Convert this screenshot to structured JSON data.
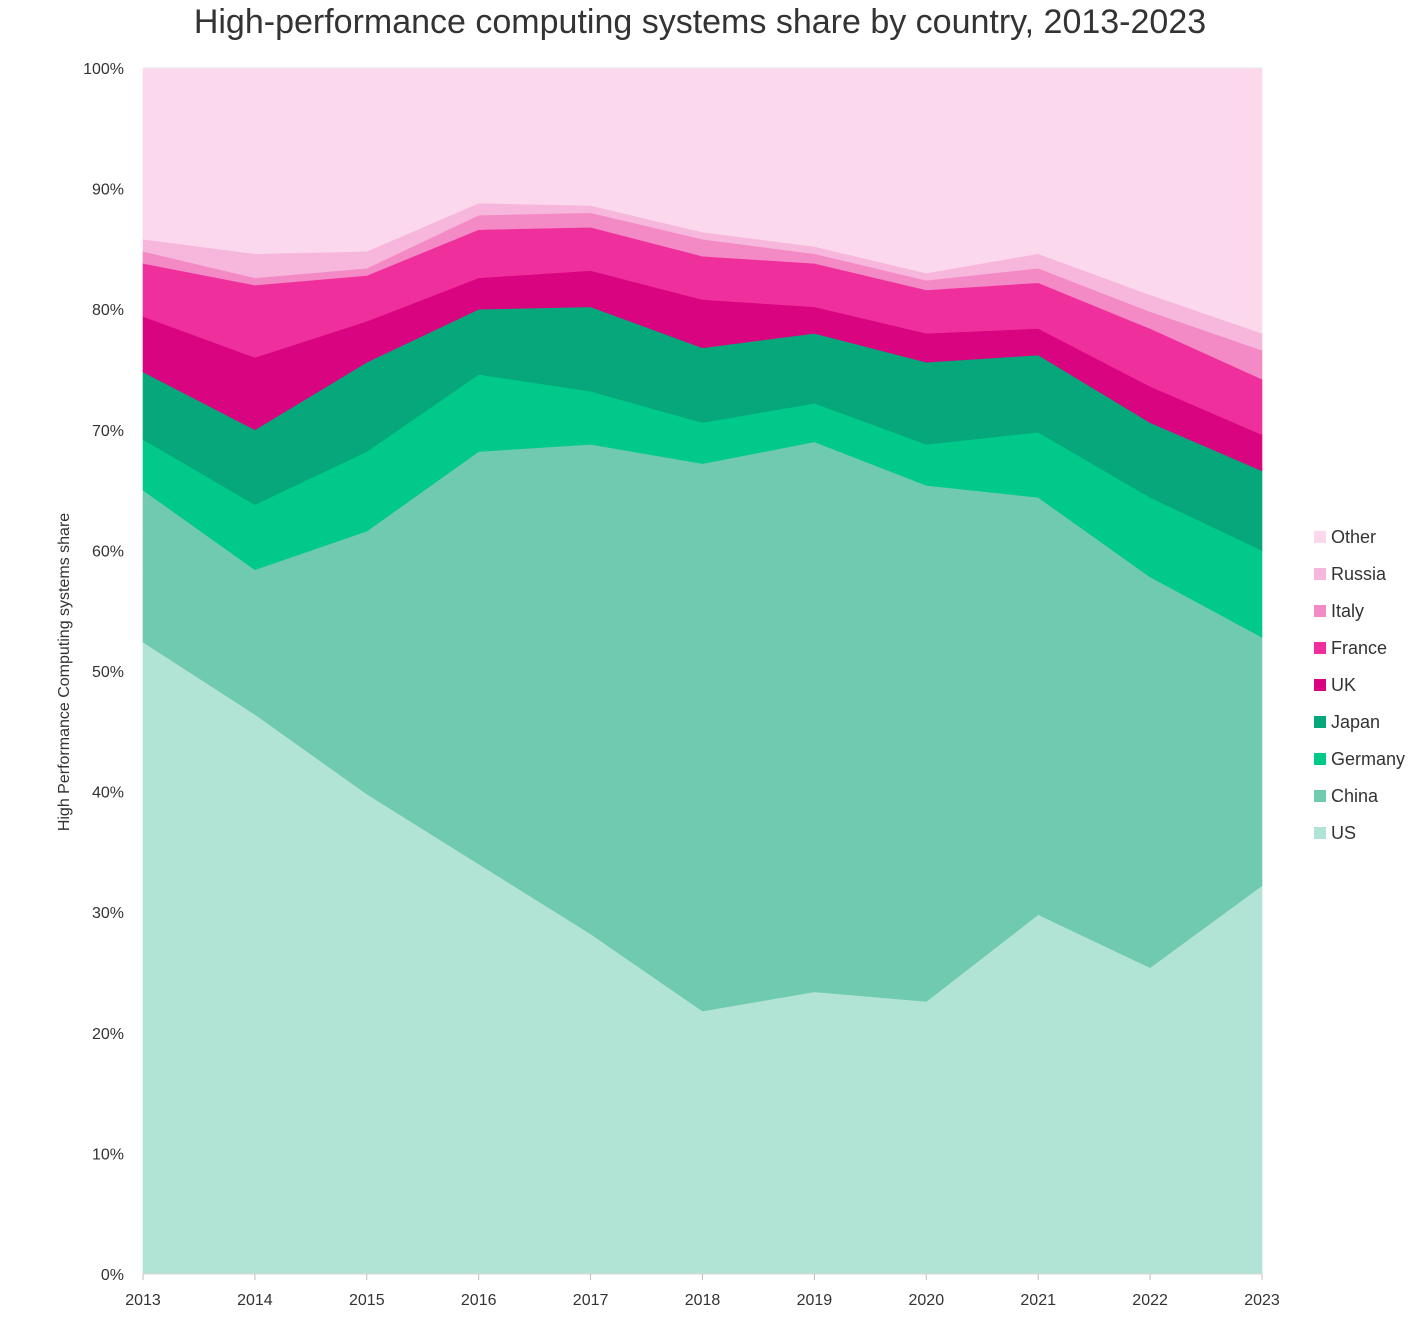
{
  "chart_data": {
    "type": "area",
    "stacked": true,
    "title": "High-performance computing systems share by country, 2013-2023",
    "xlabel": "",
    "ylabel": "High Performance Computing systems share",
    "x": [
      "2013",
      "2014",
      "2015",
      "2016",
      "2017",
      "2018",
      "2019",
      "2020",
      "2021",
      "2022",
      "2023"
    ],
    "ylim": [
      0,
      100
    ],
    "yticks": [
      "0%",
      "10%",
      "20%",
      "30%",
      "40%",
      "50%",
      "60%",
      "70%",
      "80%",
      "90%",
      "100%"
    ],
    "legend_position": "right",
    "grid": false,
    "series": [
      {
        "name": "US",
        "color": "#b2e4d5",
        "values": [
          52.4,
          46.4,
          39.8,
          34.0,
          28.2,
          21.8,
          23.4,
          22.6,
          29.8,
          25.4,
          32.2
        ]
      },
      {
        "name": "China",
        "color": "#6fcaaf",
        "values": [
          12.6,
          12.0,
          21.8,
          34.2,
          40.6,
          45.4,
          45.6,
          42.8,
          34.6,
          32.4,
          20.6
        ]
      },
      {
        "name": "Germany",
        "color": "#00c98a",
        "values": [
          4.2,
          5.4,
          6.6,
          6.4,
          4.4,
          3.4,
          3.2,
          3.4,
          5.4,
          6.6,
          7.2
        ]
      },
      {
        "name": "Japan",
        "color": "#06a77a",
        "values": [
          5.6,
          6.2,
          7.4,
          5.4,
          7.0,
          6.2,
          5.8,
          6.8,
          6.4,
          6.2,
          6.6
        ]
      },
      {
        "name": "UK",
        "color": "#d9047f",
        "values": [
          4.6,
          6.0,
          3.4,
          2.6,
          3.0,
          4.0,
          2.2,
          2.4,
          2.2,
          3.0,
          3.0
        ]
      },
      {
        "name": "France",
        "color": "#ef2f9c",
        "values": [
          4.4,
          6.0,
          3.8,
          4.0,
          3.6,
          3.6,
          3.6,
          3.6,
          3.8,
          4.8,
          4.6
        ]
      },
      {
        "name": "Italy",
        "color": "#f38ac5",
        "values": [
          1.0,
          0.6,
          0.6,
          1.2,
          1.2,
          1.4,
          0.8,
          0.8,
          1.2,
          1.4,
          2.4
        ]
      },
      {
        "name": "Russia",
        "color": "#f7b6db",
        "values": [
          1.0,
          2.0,
          1.4,
          1.0,
          0.6,
          0.6,
          0.6,
          0.6,
          1.2,
          1.4,
          1.4
        ]
      },
      {
        "name": "Other",
        "color": "#fcd8ec",
        "values": [
          14.2,
          15.4,
          15.2,
          11.2,
          11.4,
          13.6,
          14.8,
          17.0,
          15.4,
          18.8,
          22.0
        ]
      }
    ]
  }
}
